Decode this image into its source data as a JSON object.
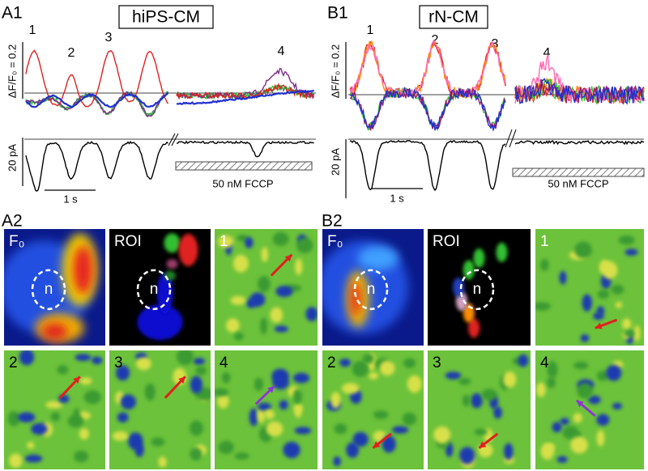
{
  "panels": [
    {
      "label": "A1",
      "title": "hiPS-CM",
      "peaks": [
        "1",
        "2",
        "3",
        "4"
      ],
      "fluorescence_scale": "ΔF/F₀ = 0.2",
      "current_scale": "20 pA",
      "time_scale": "1 s",
      "treatment": "50 nM FCCP"
    },
    {
      "label": "B1",
      "title": "rN-CM",
      "peaks": [
        "1",
        "2",
        "3",
        "4"
      ],
      "fluorescence_scale": "ΔF/F₀ = 0.2",
      "current_scale": "20 pA",
      "time_scale": "1 s",
      "treatment": "50 nM FCCP"
    }
  ],
  "image_panels": [
    {
      "label": "A2",
      "tiles": [
        "F₀",
        "ROI",
        "1",
        "2",
        "3",
        "4"
      ],
      "nucleus": "n"
    },
    {
      "label": "B2",
      "tiles": [
        "F₀",
        "ROI",
        "1",
        "2",
        "3",
        "4"
      ],
      "nucleus": "n"
    }
  ]
}
